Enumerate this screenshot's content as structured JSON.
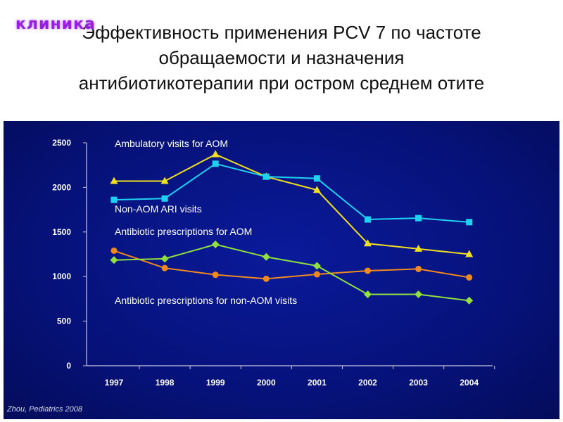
{
  "logo": "клиника",
  "title": [
    "Эффективность применения PCV 7 по частоте",
    "обращаемости и назначения",
    "антибиотикотерапии при остром среднем отите"
  ],
  "footer": "Zhou, Pediatrics 2008",
  "chart_data": {
    "type": "line",
    "x": [
      "1997",
      "1998",
      "1999",
      "2000",
      "2001",
      "2002",
      "2003",
      "2004"
    ],
    "ylim": [
      0,
      2500
    ],
    "yticks": [
      "0",
      "500",
      "1000",
      "1500",
      "2000",
      "2500"
    ],
    "series": [
      {
        "name": "Ambulatory visits for AOM",
        "color": "#f0e020",
        "marker": "triangle",
        "values": [
          2070,
          2070,
          2370,
          2120,
          1970,
          1370,
          1310,
          1250
        ]
      },
      {
        "name": "Non-AOM ARI visits",
        "color": "#20d0f0",
        "marker": "square",
        "values": [
          1860,
          1875,
          2265,
          2120,
          2100,
          1640,
          1655,
          1610
        ]
      },
      {
        "name": "Antibiotic prescriptions for AOM",
        "color": "#f08a20",
        "marker": "circle",
        "values": [
          1290,
          1095,
          1020,
          975,
          1025,
          1065,
          1085,
          990
        ]
      },
      {
        "name": "Antibiotic prescriptions for non-AOM visits",
        "color": "#90e040",
        "marker": "diamond",
        "values": [
          1185,
          1200,
          1360,
          1220,
          1120,
          800,
          800,
          730
        ]
      }
    ]
  }
}
